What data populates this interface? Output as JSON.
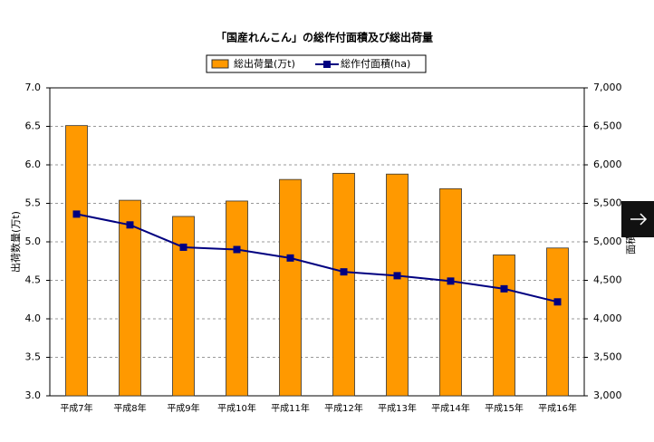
{
  "chart_data": {
    "type": "bar_line",
    "title": "「国産れんこん」の総作付面積及び総出荷量",
    "y_label": "出荷数量(万t)",
    "y2_label": "面積",
    "categories": [
      "平成7年",
      "平成8年",
      "平成9年",
      "平成10年",
      "平成11年",
      "平成12年",
      "平成13年",
      "平成14年",
      "平成15年",
      "平成16年"
    ],
    "series": [
      {
        "name": "総出荷量(万t)",
        "type": "bar",
        "color": "#ff9900",
        "values": [
          6.51,
          5.54,
          5.33,
          5.53,
          5.81,
          5.89,
          5.88,
          5.69,
          4.83,
          4.92
        ]
      },
      {
        "name": "総作付面積(ha)",
        "type": "line",
        "axis": "y2",
        "color": "#000080",
        "values": [
          5360,
          5220,
          4930,
          4900,
          4790,
          4610,
          4560,
          4490,
          4390,
          4220
        ]
      }
    ],
    "ylim": [
      3.0,
      7.0
    ],
    "yticks": [
      {
        "value": 3,
        "label": "3.0"
      },
      {
        "value": 3.5,
        "label": "3.5"
      },
      {
        "value": 4,
        "label": "4.0"
      },
      {
        "value": 4.5,
        "label": "4.5"
      },
      {
        "value": 5,
        "label": "5.0"
      },
      {
        "value": 5.5,
        "label": "5.5"
      },
      {
        "value": 6,
        "label": "6.0"
      },
      {
        "value": 6.5,
        "label": "6.5"
      },
      {
        "value": 7,
        "label": "7.0"
      }
    ],
    "y2lim": [
      3000,
      7000
    ],
    "y2ticks": [
      {
        "value": 3000,
        "label": "3,000"
      },
      {
        "value": 3500,
        "label": "3,500"
      },
      {
        "value": 4000,
        "label": "4,000"
      },
      {
        "value": 4500,
        "label": "4,500"
      },
      {
        "value": 5000,
        "label": "5,000"
      },
      {
        "value": 5500,
        "label": "5,500"
      },
      {
        "value": 6000,
        "label": "6,000"
      },
      {
        "value": 6500,
        "label": "6,500"
      },
      {
        "value": 7000,
        "label": "7,000"
      }
    ],
    "grid": true
  }
}
